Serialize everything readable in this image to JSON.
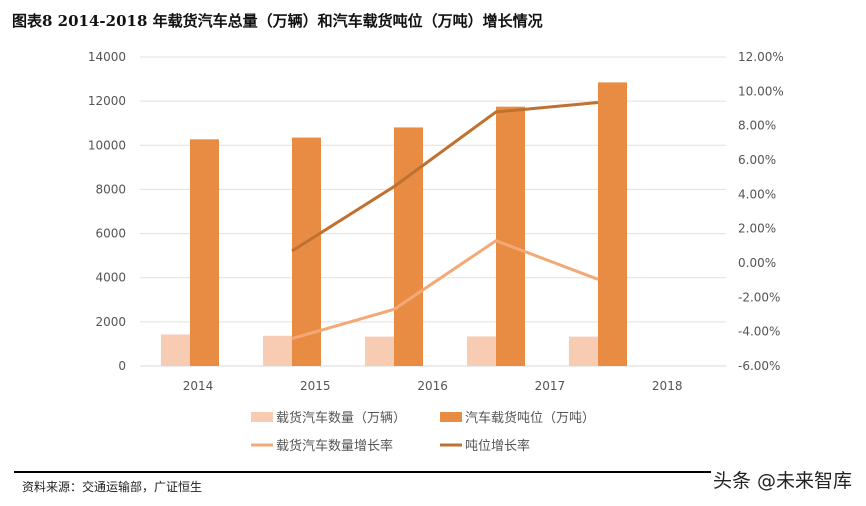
{
  "title": "图表8 2014-2018 年载货汽车总量（万辆）和汽车载货吨位（万吨）增长情况",
  "source": "资料来源：交通运输部，广证恒生",
  "watermark": "头条 @未来智库",
  "colors": {
    "count_bar": "#F8CBB3",
    "tonnage_bar": "#E88C43",
    "count_rate": "#F4A877",
    "tonnage_rate": "#C0702F",
    "grid": "#E0E0E0"
  },
  "chart_data": {
    "type": "bar",
    "categories": [
      "2014",
      "2015",
      "2016",
      "2017",
      "2018"
    ],
    "left_axis": {
      "range": [
        0,
        14000
      ],
      "ticks": [
        "0",
        "2000",
        "4000",
        "6000",
        "8000",
        "10000",
        "12000",
        "14000"
      ]
    },
    "right_axis": {
      "range": [
        -6,
        12
      ],
      "ticks": [
        "-6.00%",
        "-4.00%",
        "-2.00%",
        "0.00%",
        "2.00%",
        "4.00%",
        "6.00%",
        "8.00%",
        "10.00%",
        "12.00%"
      ]
    },
    "grid": true,
    "legend_position": "bottom",
    "series": [
      {
        "name": "载货汽车数量（万辆）",
        "type": "bar",
        "axis": "left",
        "values": [
          1430,
          1370,
          1330,
          1340,
          1330
        ]
      },
      {
        "name": "汽车载货吨位（万吨）",
        "type": "bar",
        "axis": "left",
        "values": [
          10270,
          10350,
          10810,
          11750,
          12850
        ]
      },
      {
        "name": "载货汽车数量增长率",
        "type": "line",
        "axis": "right",
        "values": [
          null,
          -4.4,
          -2.7,
          1.3,
          -0.95
        ]
      },
      {
        "name": "吨位增长率",
        "type": "line",
        "axis": "right",
        "values": [
          null,
          0.7,
          4.45,
          8.8,
          9.35
        ]
      }
    ]
  }
}
